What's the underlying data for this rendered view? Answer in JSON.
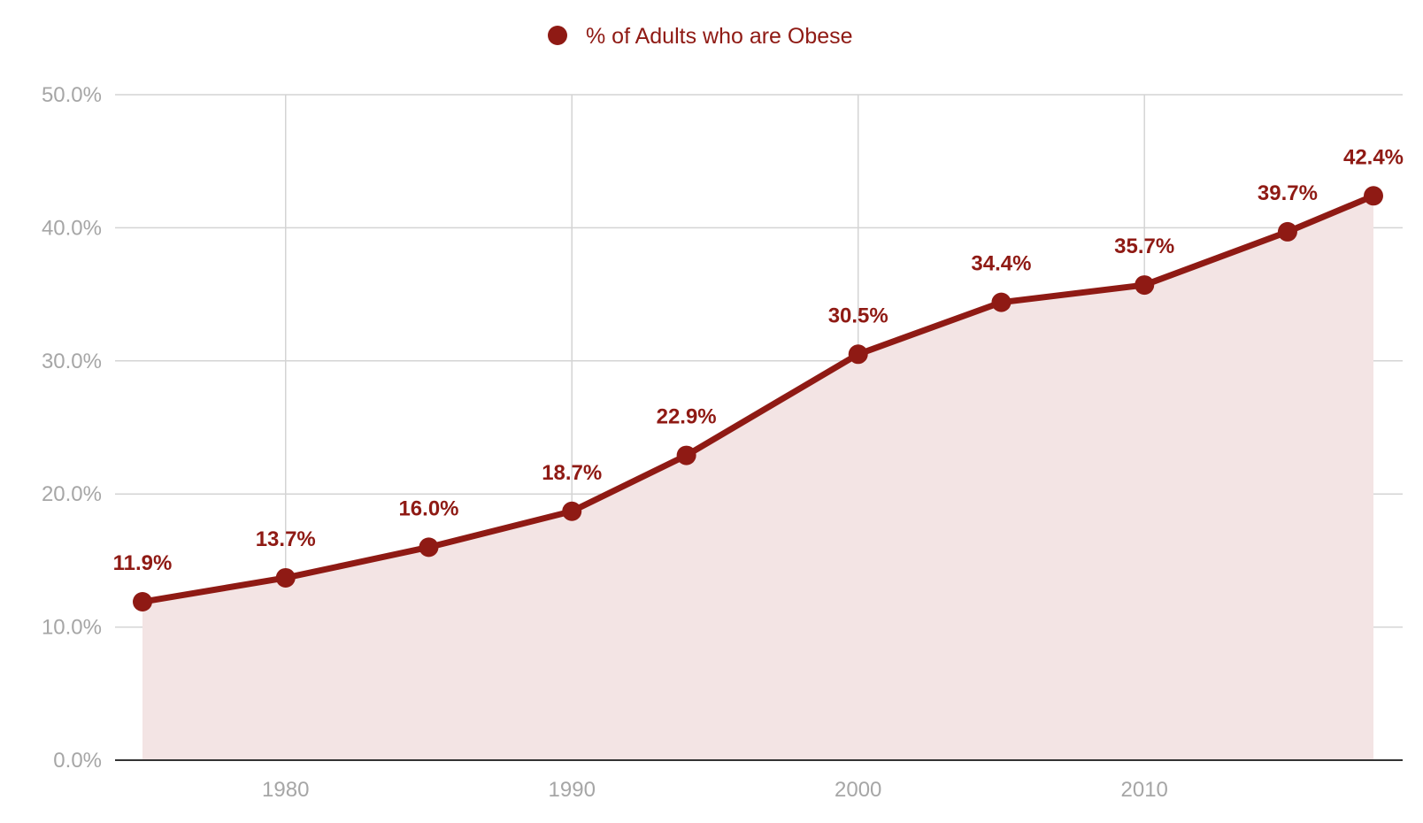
{
  "chart_data": {
    "type": "area",
    "series": [
      {
        "name": "% of Adults who are Obese",
        "x": [
          1975,
          1980,
          1985,
          1990,
          1994,
          2000,
          2005,
          2010,
          2015,
          2018
        ],
        "values": [
          11.9,
          13.7,
          16.0,
          18.7,
          22.9,
          30.5,
          34.4,
          35.7,
          39.7,
          42.4
        ],
        "data_labels": [
          "11.9%",
          "13.7%",
          "16.0%",
          "18.7%",
          "22.9%",
          "30.5%",
          "34.4%",
          "35.7%",
          "39.7%",
          "42.4%"
        ]
      }
    ],
    "xlim": [
      1975,
      2018
    ],
    "ylim": [
      0,
      50
    ],
    "y_ticks": [
      {
        "value": 0,
        "label": "0.0%"
      },
      {
        "value": 10,
        "label": "10.0%"
      },
      {
        "value": 20,
        "label": "20.0%"
      },
      {
        "value": 30,
        "label": "30.0%"
      },
      {
        "value": 40,
        "label": "40.0%"
      },
      {
        "value": 50,
        "label": "50.0%"
      }
    ],
    "x_ticks": [
      {
        "value": 1980,
        "label": "1980"
      },
      {
        "value": 1990,
        "label": "1990"
      },
      {
        "value": 2000,
        "label": "2000"
      },
      {
        "value": 2010,
        "label": "2010"
      }
    ],
    "grid": true,
    "legend_position": "top-center",
    "colors": {
      "line": "#8f1a14",
      "area": "#f3e4e4",
      "grid": "#d4d4d4",
      "axis": "#333333",
      "tick_text": "#a6a6a6"
    }
  }
}
